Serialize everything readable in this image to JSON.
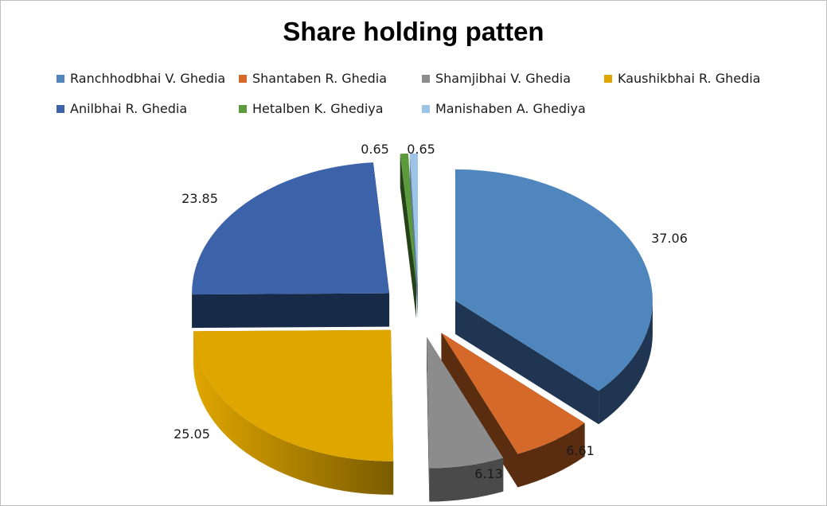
{
  "chart_data": {
    "type": "pie",
    "title": "Share holding patten",
    "legend_position": "top",
    "categories": [
      "Ranchhodbhai V. Ghedia",
      "Shantaben R. Ghedia",
      "Shamjibhai V. Ghedia",
      "Kaushikbhai R. Ghedia",
      "Anilbhai R. Ghedia",
      "Hetalben K. Ghediya",
      "Manishaben A. Ghediya"
    ],
    "values": [
      37.06,
      6.61,
      6.13,
      25.05,
      23.85,
      0.65,
      0.65
    ],
    "data_labels": [
      "37.06",
      "6.61",
      "6.13",
      "25.05",
      "23.85",
      "0.65",
      "0.65"
    ],
    "colors": [
      "#4f86bd",
      "#d5692a",
      "#8c8c8c",
      "#e0a600",
      "#3c63aa",
      "#5c9a3c",
      "#9dc3e6"
    ],
    "side_colors": [
      "#1f3551",
      "#5a2d10",
      "#4a4a4a",
      "#8e6a00",
      "#172a48",
      "#254219",
      "#5f7f9e"
    ]
  }
}
